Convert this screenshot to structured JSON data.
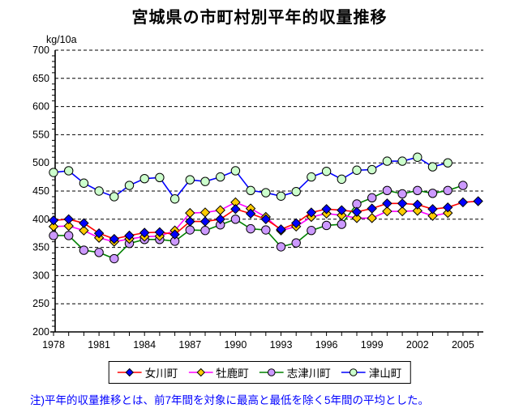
{
  "title": "宮城県の市町村別平年的収量推移",
  "note": "注)平年的収量推移とは、前7年間を対象に最高と最低を除く5年間の平均とした。",
  "chart_data": {
    "type": "line",
    "title": "宮城県の市町村別平年的収量推移",
    "ylabel": "kg/10a",
    "ylim": [
      200,
      700
    ],
    "y_tick_step": 50,
    "y_minor_tick_step": 10,
    "grid": "horizontal-dashed-black",
    "legend_position": "bottom-center-boxed",
    "x": [
      1978,
      1979,
      1980,
      1981,
      1982,
      1983,
      1984,
      1985,
      1986,
      1987,
      1988,
      1989,
      1990,
      1991,
      1992,
      1993,
      1994,
      1995,
      1996,
      1997,
      1998,
      1999,
      2000,
      2001,
      2002,
      2003,
      2004,
      2005,
      2006
    ],
    "x_tick_label_years": [
      1978,
      1981,
      1984,
      1987,
      1990,
      1993,
      1996,
      1999,
      2002,
      2005
    ],
    "series": [
      {
        "name": "女川町",
        "line_color": "#FF0000",
        "marker": "diamond",
        "marker_color": "#0000FF",
        "values": [
          398,
          400,
          393,
          375,
          365,
          371,
          376,
          377,
          373,
          396,
          396,
          400,
          418,
          410,
          400,
          382,
          393,
          412,
          418,
          416,
          413,
          419,
          428,
          428,
          426,
          418,
          421,
          430,
          432
        ]
      },
      {
        "name": "牡鹿町",
        "line_color": "#FF00FF",
        "marker": "diamond",
        "marker_color": "#FFCC00",
        "values": [
          387,
          388,
          380,
          367,
          360,
          365,
          369,
          370,
          380,
          411,
          412,
          416,
          430,
          419,
          404,
          380,
          387,
          404,
          410,
          407,
          402,
          402,
          414,
          414,
          415,
          406,
          411
        ]
      },
      {
        "name": "志津川町",
        "line_color": "#008000",
        "marker": "circle",
        "marker_color": "#CC99FF",
        "values": [
          371,
          371,
          345,
          341,
          330,
          357,
          364,
          364,
          361,
          381,
          380,
          390,
          400,
          383,
          381,
          351,
          358,
          380,
          389,
          391,
          427,
          438,
          451,
          445,
          451,
          446,
          451,
          460
        ]
      },
      {
        "name": "津山町",
        "line_color": "#0000FF",
        "marker": "circle",
        "marker_color": "#CCFFCC",
        "values": [
          483,
          486,
          464,
          450,
          440,
          460,
          472,
          474,
          436,
          470,
          467,
          475,
          486,
          451,
          447,
          441,
          449,
          475,
          485,
          471,
          487,
          488,
          503,
          503,
          510,
          493,
          500
        ]
      }
    ]
  }
}
